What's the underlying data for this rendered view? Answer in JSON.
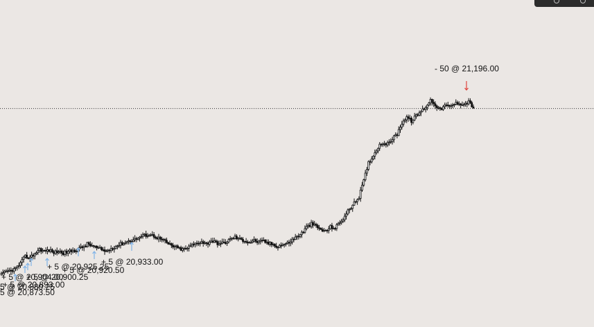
{
  "chart_data": {
    "type": "candlestick",
    "price_line": {
      "value": 21165,
      "style": "dotted"
    },
    "ylim": [
      20820,
      21240
    ],
    "colors": {
      "candle": "#111111",
      "buy_arrow": "#7fb3e8",
      "sell_arrow": "#e0443e",
      "price_line": "#333333"
    },
    "close_series": [
      20873,
      20878,
      20880,
      20884,
      20893,
      20905,
      20903,
      20910,
      20918,
      20914,
      20916,
      20912,
      20914,
      20911,
      20913,
      20915,
      20918,
      20921,
      20927,
      20924,
      20920,
      20917,
      20914,
      20919,
      20923,
      20927,
      20930,
      20933,
      20935,
      20939,
      20942,
      20944,
      20941,
      20937,
      20933,
      20927,
      20923,
      20920,
      20917,
      20920,
      20925,
      20929,
      20931,
      20927,
      20933,
      20929,
      20927,
      20930,
      20935,
      20939,
      20935,
      20933,
      20930,
      20933,
      20930,
      20932,
      20928,
      20926,
      20923,
      20926,
      20928,
      20934,
      20940,
      20946,
      20956,
      20962,
      20958,
      20952,
      20949,
      20957,
      20955,
      20965,
      20975,
      20989,
      20998,
      21010,
      21038,
      21070,
      21082,
      21098,
      21105,
      21102,
      21112,
      21120,
      21140,
      21150,
      21143,
      21152,
      21160,
      21168,
      21180,
      21172,
      21163,
      21170,
      21168,
      21173,
      21175,
      21172,
      21177,
      21166
    ],
    "trades": [
      {
        "side": "buy",
        "qty": 5,
        "price": 20873.5,
        "label": "5 @ 20,873.50"
      },
      {
        "side": "buy",
        "qty": 5,
        "price": 20880.25,
        "label": "5 @ 20,880.25"
      },
      {
        "side": "buy",
        "qty": 5,
        "price": 20893.0,
        "label": "+ 5 @ 20,893.00"
      },
      {
        "side": "buy",
        "qty": 5,
        "price": 20900.25,
        "label": "+ 5 @ 20,900.25"
      },
      {
        "side": "buy",
        "qty": 5,
        "price": 20904.0,
        "label": "+ 5 @ 20,904.00"
      },
      {
        "side": "buy",
        "qty": 5,
        "price": 20920.5,
        "label": "+ 5 @ 20,920.50"
      },
      {
        "side": "buy",
        "qty": 5,
        "price": 20925.25,
        "label": "+ 5 @ 20,925.25"
      },
      {
        "side": "buy",
        "qty": 5,
        "price": 20933.0,
        "label": "+ 5 @ 20,933.00"
      },
      {
        "side": "sell",
        "qty": 50,
        "price": 21196.0,
        "label": "- 50 @ 21,196.00"
      }
    ]
  }
}
